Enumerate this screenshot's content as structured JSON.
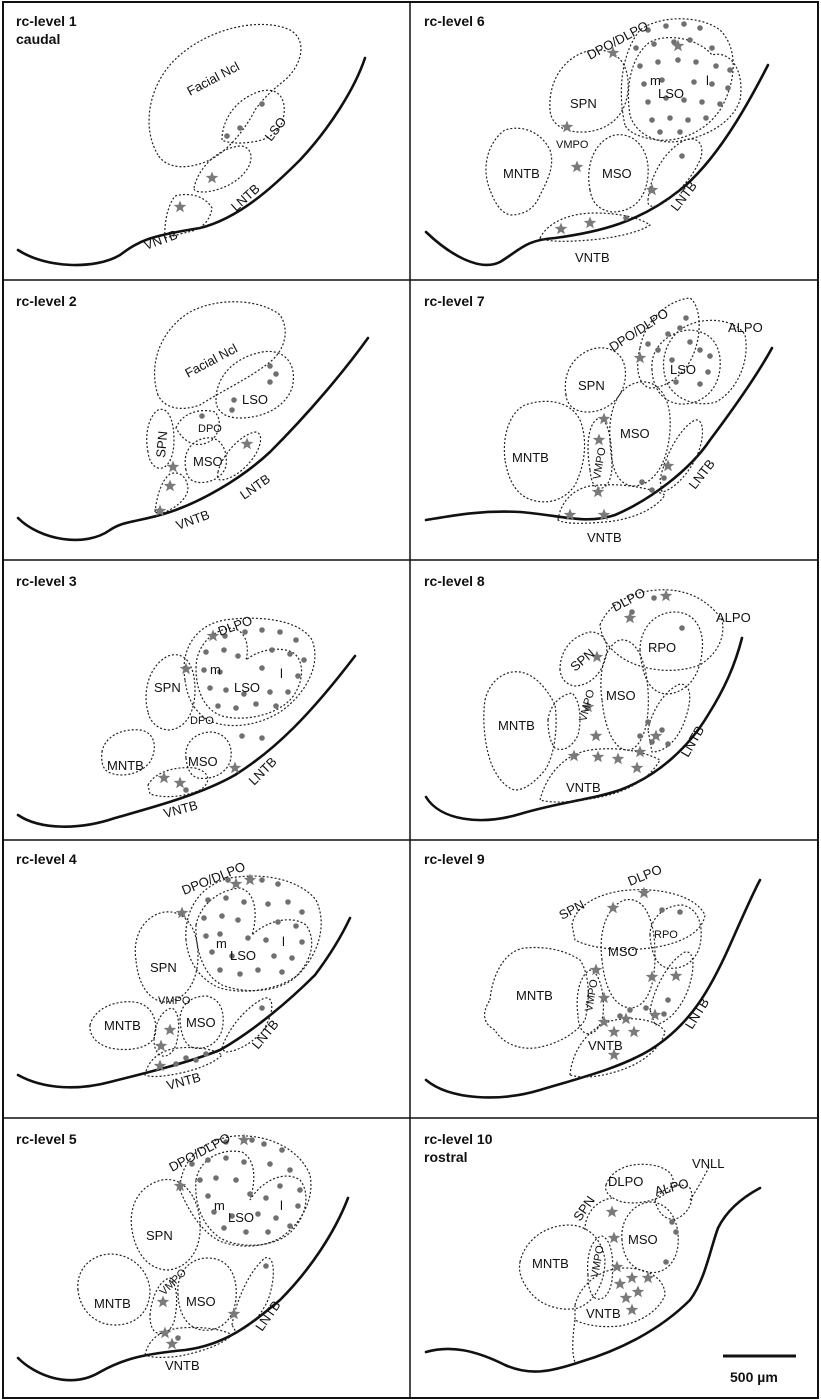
{
  "panels": [
    {
      "title": "rc-level 1",
      "subtitle": "caudal",
      "labels": {
        "facial": "Facial Ncl",
        "lso": "LSO",
        "lntb": "LNTB",
        "vntb": "VNTB"
      }
    },
    {
      "title": "rc-level 2",
      "labels": {
        "facial": "Facial Ncl",
        "lso": "LSO",
        "dpo": "DPO",
        "spn": "SPN",
        "mso": "MSO",
        "lntb": "LNTB",
        "vntb": "VNTB"
      }
    },
    {
      "title": "rc-level 3",
      "labels": {
        "dlpo": "DLPO",
        "m": "m",
        "lso": "LSO",
        "l": "l",
        "spn": "SPN",
        "dpo": "DPO",
        "mntb": "MNTB",
        "mso": "MSO",
        "lntb": "LNTB",
        "vntb": "VNTB"
      }
    },
    {
      "title": "rc-level 4",
      "labels": {
        "dpo_dlpo": "DPO/DLPO",
        "m": "m",
        "lso": "LSO",
        "l": "l",
        "spn": "SPN",
        "vmpo": "VMPO",
        "mntb": "MNTB",
        "mso": "MSO",
        "lntb": "LNTB",
        "vntb": "VNTB"
      }
    },
    {
      "title": "rc-level 5",
      "labels": {
        "dpo_dlpo": "DPO/DLPO",
        "m": "m",
        "lso": "LSO",
        "l": "l",
        "spn": "SPN",
        "vmpo": "VMPO",
        "mntb": "MNTB",
        "mso": "MSO",
        "lntb": "LNTB",
        "vntb": "VNTB"
      }
    },
    {
      "title": "rc-level 6",
      "labels": {
        "dpo_dlpo": "DPO/DLPO",
        "m": "m",
        "lso": "LSO",
        "l": "l",
        "spn": "SPN",
        "vmpo": "VMPO",
        "mntb": "MNTB",
        "mso": "MSO",
        "lntb": "LNTB",
        "vntb": "VNTB"
      }
    },
    {
      "title": "rc-level 7",
      "labels": {
        "dpo_dlpo": "DPO/DLPO",
        "alpo": "ALPO",
        "lso": "LSO",
        "spn": "SPN",
        "vmpo": "VMPO",
        "mntb": "MNTB",
        "mso": "MSO",
        "lntb": "LNTB",
        "vntb": "VNTB"
      }
    },
    {
      "title": "rc-level 8",
      "labels": {
        "dlpo": "DLPO",
        "alpo": "ALPO",
        "rpo": "RPO",
        "spn": "SPN",
        "vmpo": "VMPO",
        "mntb": "MNTB",
        "mso": "MSO",
        "lntb": "LNTB",
        "vntb": "VNTB"
      }
    },
    {
      "title": "rc-level 9",
      "labels": {
        "dlpo": "DLPO",
        "spn": "SPN",
        "rpo": "RPO",
        "mso": "MSO",
        "vmpo": "VMPO",
        "mntb": "MNTB",
        "lntb": "LNTB",
        "vntb": "VNTB"
      }
    },
    {
      "title": "rc-level 10",
      "subtitle": "rostral",
      "labels": {
        "vnll": "VNLL",
        "dlpo": "DLPO",
        "alpo": "ALPO",
        "spn": "SPN",
        "mso": "MSO",
        "vmpo": "VMPO",
        "mntb": "MNTB",
        "vntb": "VNTB"
      }
    }
  ],
  "scale_bar": {
    "label": "500 µm"
  },
  "colors": {
    "line": "#111111",
    "marker": "#707070"
  }
}
